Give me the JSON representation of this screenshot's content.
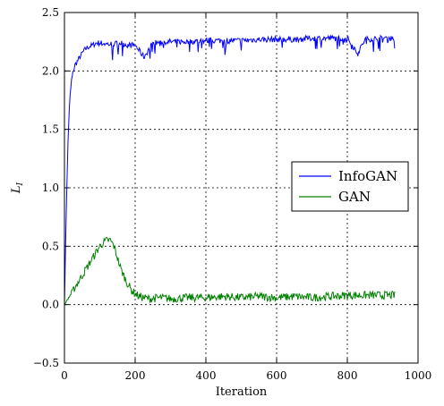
{
  "chart_data": {
    "type": "line",
    "xlabel": "Iteration",
    "ylabel": "L_I",
    "ylabel_main": "L",
    "ylabel_sub": "I",
    "xlim": [
      0,
      1000
    ],
    "ylim": [
      -0.5,
      2.5
    ],
    "xticks": [
      0,
      200,
      400,
      600,
      800,
      1000
    ],
    "yticks": [
      -0.5,
      0.0,
      0.5,
      1.0,
      1.5,
      2.0,
      2.5
    ],
    "xtick_labels": [
      "0",
      "200",
      "400",
      "600",
      "800",
      "1000"
    ],
    "ytick_labels": [
      "−0.5",
      "0.0",
      "0.5",
      "1.0",
      "1.5",
      "2.0",
      "2.5"
    ],
    "grid": true,
    "legend_position": "center-right",
    "series": [
      {
        "name": "InfoGAN",
        "color": "#0000ff",
        "x": [
          0,
          5,
          10,
          15,
          20,
          25,
          30,
          40,
          50,
          60,
          70,
          80,
          90,
          100,
          120,
          140,
          160,
          180,
          200,
          225,
          250,
          300,
          350,
          400,
          450,
          500,
          550,
          600,
          650,
          700,
          750,
          800,
          830,
          850,
          900,
          935
        ],
        "y": [
          0.0,
          0.8,
          1.4,
          1.75,
          1.92,
          2.0,
          2.05,
          2.1,
          2.15,
          2.19,
          2.21,
          2.22,
          2.24,
          2.24,
          2.23,
          2.23,
          2.24,
          2.22,
          2.22,
          2.12,
          2.24,
          2.25,
          2.25,
          2.26,
          2.26,
          2.26,
          2.27,
          2.27,
          2.27,
          2.28,
          2.28,
          2.28,
          2.15,
          2.27,
          2.28,
          2.28
        ],
        "noise": 0.025
      },
      {
        "name": "GAN",
        "color": "#008000",
        "x": [
          0,
          20,
          40,
          60,
          80,
          100,
          110,
          120,
          130,
          140,
          150,
          160,
          175,
          190,
          210,
          240,
          270,
          300,
          350,
          400,
          450,
          500,
          550,
          600,
          650,
          700,
          750,
          800,
          850,
          900,
          935
        ],
        "y": [
          0.0,
          0.1,
          0.2,
          0.3,
          0.4,
          0.5,
          0.53,
          0.55,
          0.55,
          0.5,
          0.4,
          0.3,
          0.2,
          0.12,
          0.07,
          0.05,
          0.06,
          0.05,
          0.06,
          0.06,
          0.07,
          0.06,
          0.07,
          0.06,
          0.07,
          0.06,
          0.07,
          0.08,
          0.08,
          0.08,
          0.08
        ],
        "noise": 0.035
      }
    ]
  }
}
